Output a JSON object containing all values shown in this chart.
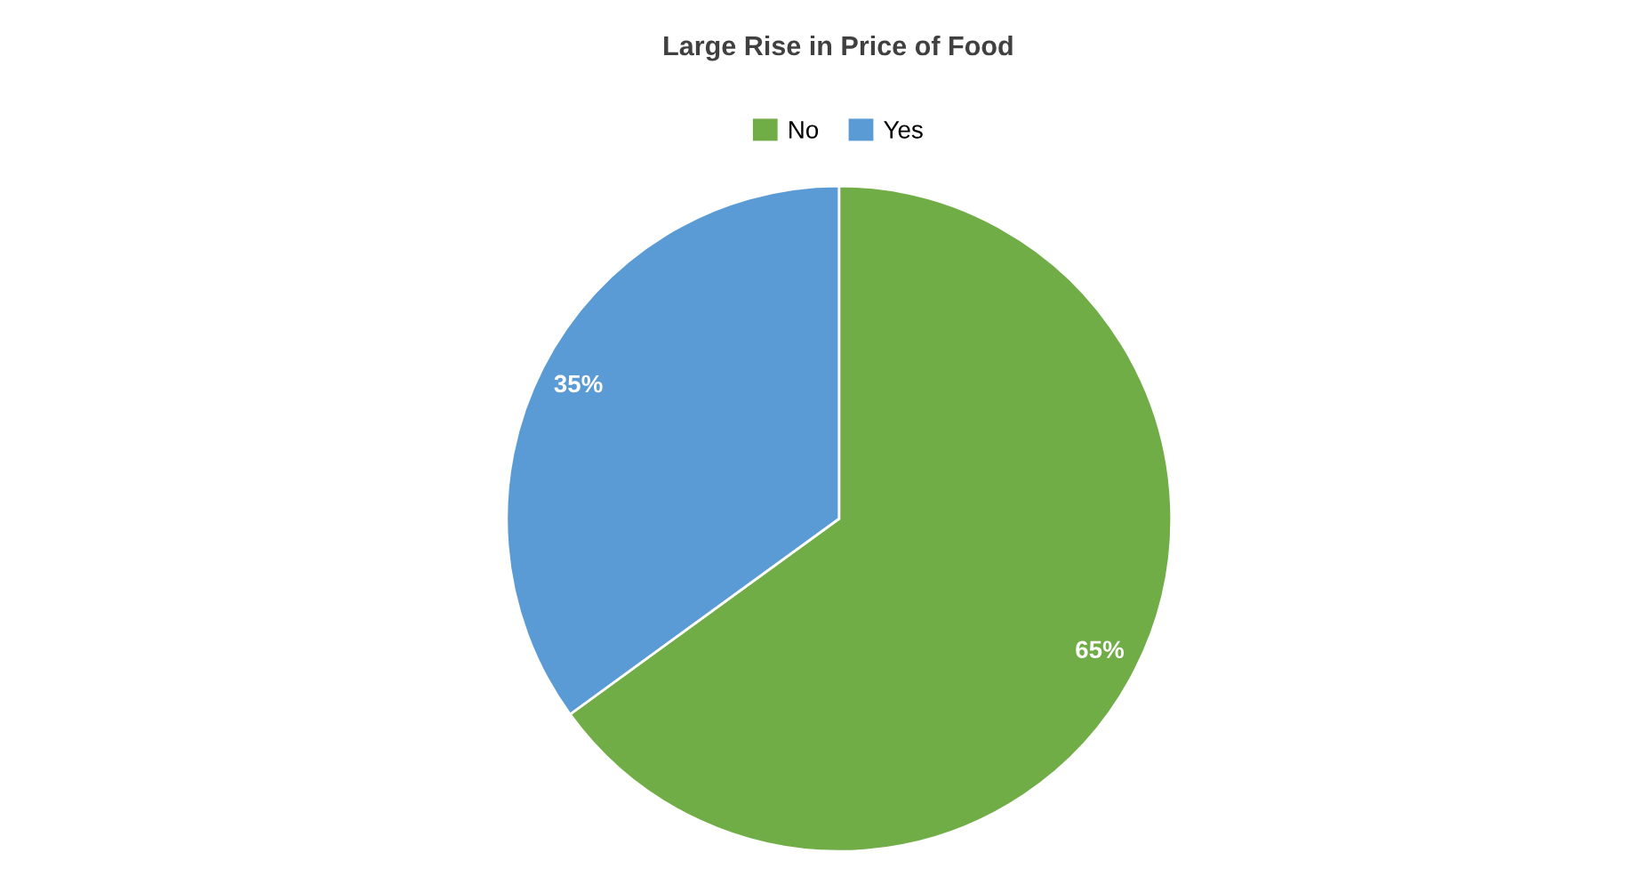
{
  "chart_data": {
    "type": "pie",
    "title": "Large Rise in Price of Food",
    "categories": [
      "No",
      "Yes"
    ],
    "values": [
      65,
      35
    ],
    "colors": [
      "#70ad47",
      "#5b9bd5"
    ],
    "value_labels": [
      "65%",
      "35%"
    ],
    "legend": "top"
  }
}
